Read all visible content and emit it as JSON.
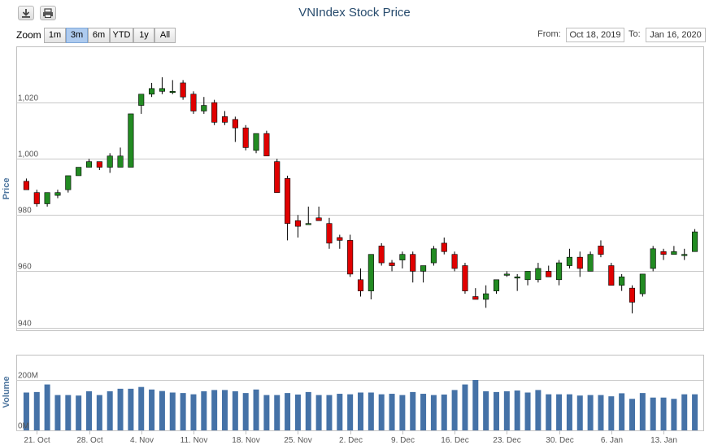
{
  "toolbar": {
    "download_icon": "download-icon",
    "print_icon": "print-icon"
  },
  "title": "VNIndex Stock Price",
  "zoom": {
    "label": "Zoom",
    "buttons": [
      "1m",
      "3m",
      "6m",
      "YTD",
      "1y",
      "All"
    ],
    "active": "3m"
  },
  "range": {
    "from_label": "From:",
    "from_value": "Oct 18, 2019",
    "to_label": "To:",
    "to_value": "Jan 16, 2020"
  },
  "colors": {
    "up": "#228b22",
    "down": "#e00000",
    "volume": "#4572a7",
    "grid": "#c8c8c8"
  },
  "chart_data": {
    "type": "candlestick",
    "title": "VNIndex Stock Price",
    "price_axis": {
      "label": "Price",
      "ylim": [
        939,
        1040
      ],
      "ticks": [
        940,
        960,
        980,
        1000,
        1020
      ],
      "tick_labels": [
        "940",
        "960",
        "980",
        "1,000",
        "1,020"
      ]
    },
    "volume_axis": {
      "label": "Volume",
      "ylim": [
        0,
        300
      ],
      "ticks": [
        0,
        200
      ],
      "tick_labels": [
        "0M",
        "200M"
      ]
    },
    "x_tick_labels": [
      "21. Oct",
      "28. Oct",
      "4. Nov",
      "11. Nov",
      "18. Nov",
      "25. Nov",
      "2. Dec",
      "9. Dec",
      "16. Dec",
      "23. Dec",
      "30. Dec",
      "6. Jan",
      "13. Jan"
    ],
    "x_tick_index": [
      1,
      6,
      11,
      16,
      21,
      26,
      31,
      36,
      41,
      46,
      51,
      56,
      61
    ],
    "candles": [
      [
        992,
        993,
        989,
        989
      ],
      [
        988,
        989,
        983,
        984
      ],
      [
        984,
        988,
        983,
        988
      ],
      [
        987,
        989,
        986,
        988
      ],
      [
        989,
        994,
        988,
        994
      ],
      [
        994,
        997,
        994,
        997
      ],
      [
        997,
        1000,
        997,
        999
      ],
      [
        999,
        999,
        996,
        997
      ],
      [
        997,
        1002,
        995,
        1001
      ],
      [
        997,
        1004,
        997,
        1001
      ],
      [
        997,
        1016,
        997,
        1016
      ],
      [
        1019,
        1023,
        1016,
        1023
      ],
      [
        1023,
        1027,
        1022,
        1025
      ],
      [
        1024,
        1029,
        1023,
        1025
      ],
      [
        1024,
        1028,
        1023,
        1024
      ],
      [
        1027,
        1028,
        1021,
        1022
      ],
      [
        1023,
        1024,
        1016,
        1017
      ],
      [
        1017,
        1022,
        1016,
        1019
      ],
      [
        1020,
        1021,
        1012,
        1013
      ],
      [
        1015,
        1017,
        1012,
        1013
      ],
      [
        1014,
        1015,
        1006,
        1011
      ],
      [
        1011,
        1012,
        1003,
        1004
      ],
      [
        1003,
        1009,
        1002,
        1009
      ],
      [
        1009,
        1010,
        1001,
        1001
      ],
      [
        999,
        1000,
        988,
        988
      ],
      [
        993,
        994,
        971,
        977
      ],
      [
        978,
        980,
        972,
        976
      ],
      [
        977,
        983,
        977,
        977
      ],
      [
        979,
        983,
        978,
        978
      ],
      [
        977,
        979,
        968,
        970
      ],
      [
        972,
        973,
        968,
        971
      ],
      [
        971,
        973,
        958,
        959
      ],
      [
        957,
        961,
        951,
        953
      ],
      [
        953,
        966,
        950,
        966
      ],
      [
        969,
        970,
        962,
        963
      ],
      [
        963,
        964,
        960,
        962
      ],
      [
        964,
        967,
        961,
        966
      ],
      [
        966,
        967,
        956,
        960
      ],
      [
        960,
        962,
        956,
        962
      ],
      [
        963,
        969,
        962,
        968
      ],
      [
        970,
        972,
        966,
        967
      ],
      [
        966,
        967,
        960,
        961
      ],
      [
        962,
        963,
        952,
        953
      ],
      [
        951,
        954,
        950,
        950
      ],
      [
        950,
        955,
        947,
        952
      ],
      [
        953,
        957,
        952,
        957
      ],
      [
        959,
        960,
        958,
        959
      ],
      [
        958,
        959,
        953,
        958
      ],
      [
        957,
        960,
        955,
        960
      ],
      [
        957,
        963,
        956,
        961
      ],
      [
        960,
        962,
        958,
        958
      ],
      [
        957,
        964,
        955,
        963
      ],
      [
        962,
        968,
        961,
        965
      ],
      [
        965,
        967,
        958,
        961
      ],
      [
        960,
        967,
        960,
        966
      ],
      [
        969,
        971,
        965,
        966
      ],
      [
        962,
        963,
        955,
        955
      ],
      [
        955,
        959,
        953,
        958
      ],
      [
        954,
        955,
        945,
        949
      ],
      [
        952,
        959,
        951,
        959
      ],
      [
        961,
        969,
        960,
        968
      ],
      [
        967,
        968,
        964,
        966
      ],
      [
        966,
        969,
        966,
        967
      ],
      [
        966,
        968,
        964,
        966
      ],
      [
        967,
        975,
        967,
        974
      ]
    ],
    "volumes": [
      150,
      152,
      182,
      140,
      140,
      138,
      155,
      140,
      155,
      165,
      165,
      172,
      162,
      156,
      150,
      148,
      143,
      155,
      160,
      160,
      155,
      148,
      162,
      140,
      140,
      148,
      142,
      152,
      140,
      140,
      145,
      143,
      150,
      150,
      143,
      145,
      140,
      152,
      145,
      140,
      142,
      160,
      182,
      200,
      155,
      152,
      155,
      158,
      150,
      160,
      143,
      143,
      143,
      138,
      140,
      140,
      135,
      147,
      125,
      148,
      130,
      130,
      125,
      143,
      143
    ]
  }
}
